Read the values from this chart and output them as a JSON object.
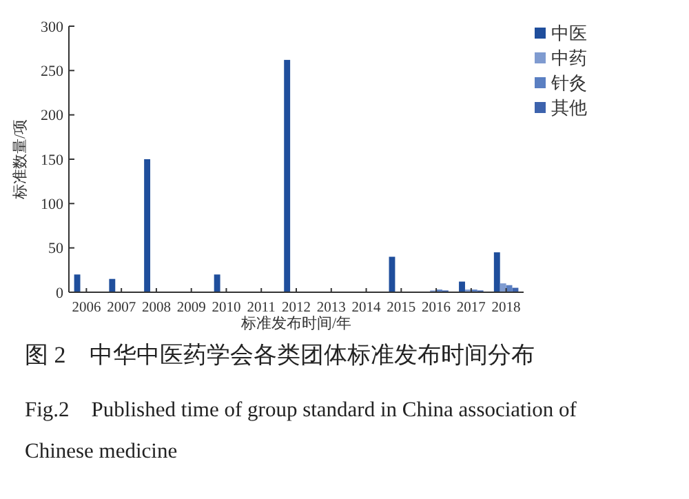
{
  "chart_data": {
    "type": "bar",
    "title": "图 2　中华中医药学会各类团体标准发布时间分布",
    "subtitle": "Fig.2　Published time of group standard in China association of Chinese medicine",
    "xlabel": "标准发布时间/年",
    "ylabel": "标准数量/项",
    "categories": [
      "2006",
      "2007",
      "2008",
      "2009",
      "2010",
      "2011",
      "2012",
      "2013",
      "2014",
      "2015",
      "2016",
      "2017",
      "2018"
    ],
    "series": [
      {
        "name": "中医",
        "color": "#1f4e9c",
        "values": [
          20,
          15,
          150,
          0,
          20,
          0,
          262,
          0,
          0,
          40,
          0,
          12,
          45
        ]
      },
      {
        "name": "中药",
        "color": "#7f9bd0",
        "values": [
          0,
          0,
          0,
          0,
          0,
          0,
          0,
          0,
          0,
          0,
          2,
          3,
          10
        ]
      },
      {
        "name": "针灸",
        "color": "#5a7fc2",
        "values": [
          0,
          0,
          0,
          0,
          0,
          0,
          0,
          0,
          0,
          0,
          3,
          3,
          8
        ]
      },
      {
        "name": "其他",
        "color": "#3d63ad",
        "values": [
          0,
          0,
          0,
          0,
          0,
          0,
          0,
          0,
          0,
          0,
          2,
          2,
          5
        ]
      }
    ],
    "ylim": [
      0,
      300
    ],
    "yticks": [
      0,
      50,
      100,
      150,
      200,
      250,
      300
    ],
    "grid": false,
    "legend": "top right"
  }
}
